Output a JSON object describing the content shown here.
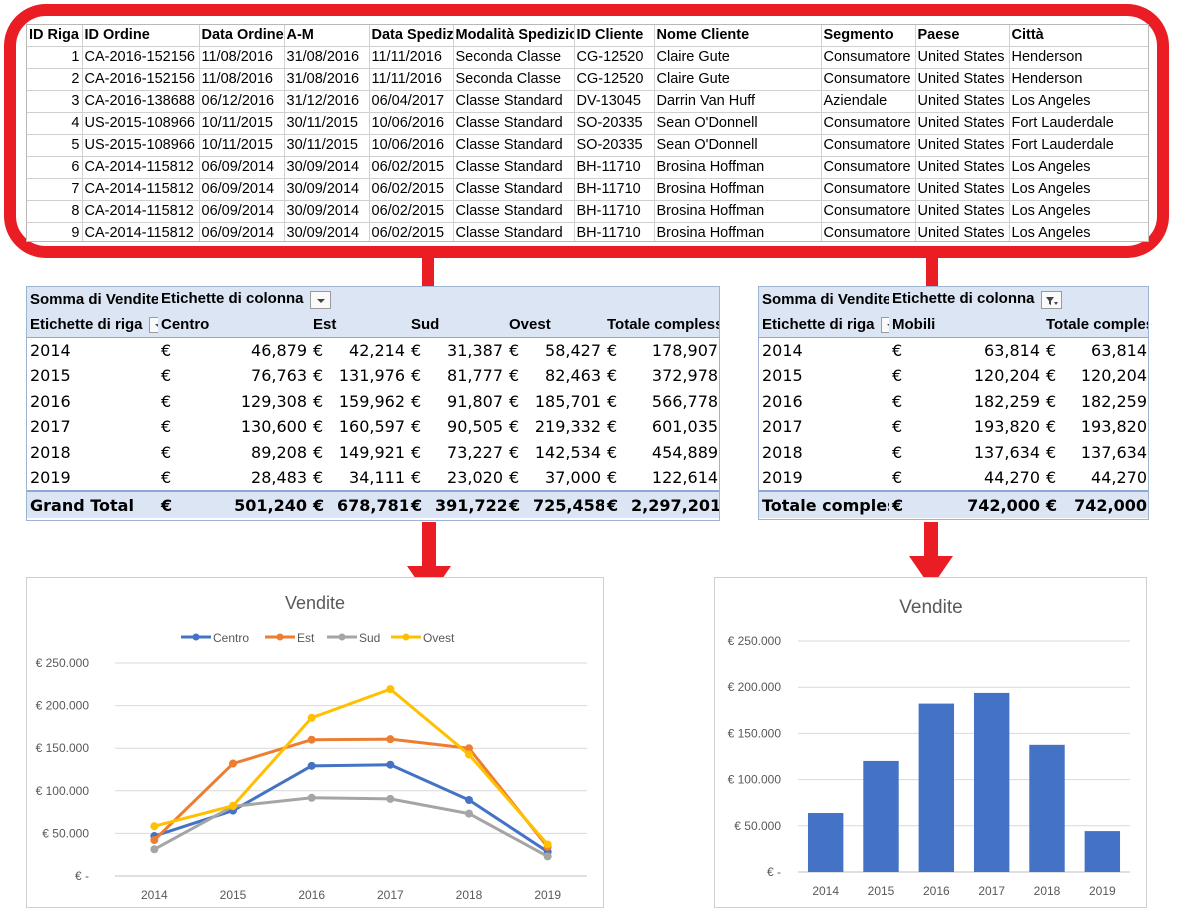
{
  "raw_table": {
    "columns": [
      "ID Riga",
      "ID Ordine",
      "Data Ordine",
      "A-M",
      "Data Spedizione",
      "Modalità Spedizione",
      "ID Cliente",
      "Nome Cliente",
      "Segmento",
      "Paese",
      "Città"
    ],
    "rows": [
      [
        "1",
        "CA-2016-152156",
        "11/08/2016",
        "31/08/2016",
        "11/11/2016",
        "Seconda Classe",
        "CG-12520",
        "Claire Gute",
        "Consumatore",
        "United States",
        "Henderson"
      ],
      [
        "2",
        "CA-2016-152156",
        "11/08/2016",
        "31/08/2016",
        "11/11/2016",
        "Seconda Classe",
        "CG-12520",
        "Claire Gute",
        "Consumatore",
        "United States",
        "Henderson"
      ],
      [
        "3",
        "CA-2016-138688",
        "06/12/2016",
        "31/12/2016",
        "06/04/2017",
        "Classe Standard",
        "DV-13045",
        "Darrin Van Huff",
        "Aziendale",
        "United States",
        "Los Angeles"
      ],
      [
        "4",
        "US-2015-108966",
        "10/11/2015",
        "30/11/2015",
        "10/06/2016",
        "Classe Standard",
        "SO-20335",
        "Sean O'Donnell",
        "Consumatore",
        "United States",
        "Fort Lauderdale"
      ],
      [
        "5",
        "US-2015-108966",
        "10/11/2015",
        "30/11/2015",
        "10/06/2016",
        "Classe Standard",
        "SO-20335",
        "Sean O'Donnell",
        "Consumatore",
        "United States",
        "Fort Lauderdale"
      ],
      [
        "6",
        "CA-2014-115812",
        "06/09/2014",
        "30/09/2014",
        "06/02/2015",
        "Classe Standard",
        "BH-11710",
        "Brosina Hoffman",
        "Consumatore",
        "United States",
        "Los Angeles"
      ],
      [
        "7",
        "CA-2014-115812",
        "06/09/2014",
        "30/09/2014",
        "06/02/2015",
        "Classe Standard",
        "BH-11710",
        "Brosina Hoffman",
        "Consumatore",
        "United States",
        "Los Angeles"
      ],
      [
        "8",
        "CA-2014-115812",
        "06/09/2014",
        "30/09/2014",
        "06/02/2015",
        "Classe Standard",
        "BH-11710",
        "Brosina Hoffman",
        "Consumatore",
        "United States",
        "Los Angeles"
      ],
      [
        "9",
        "CA-2014-115812",
        "06/09/2014",
        "30/09/2014",
        "06/02/2015",
        "Classe Standard",
        "BH-11710",
        "Brosina Hoffman",
        "Consumatore",
        "United States",
        "Los Angeles"
      ]
    ]
  },
  "pivot_region": {
    "values_label": "Somma di Vendite",
    "col_labels_label": "Etichette di colonna",
    "row_labels_label": "Etichette di riga",
    "columns": [
      "Centro",
      "Est",
      "Sud",
      "Ovest",
      "Totale complessivo"
    ],
    "currency": "€",
    "rows": [
      {
        "label": "2014",
        "values": [
          "46,879",
          "42,214",
          "31,387",
          "58,427",
          "178,907"
        ]
      },
      {
        "label": "2015",
        "values": [
          "76,763",
          "131,976",
          "81,777",
          "82,463",
          "372,978"
        ]
      },
      {
        "label": "2016",
        "values": [
          "129,308",
          "159,962",
          "91,807",
          "185,701",
          "566,778"
        ]
      },
      {
        "label": "2017",
        "values": [
          "130,600",
          "160,597",
          "90,505",
          "219,332",
          "601,035"
        ]
      },
      {
        "label": "2018",
        "values": [
          "89,208",
          "149,921",
          "73,227",
          "142,534",
          "454,889"
        ]
      },
      {
        "label": "2019",
        "values": [
          "28,483",
          "34,111",
          "23,020",
          "37,000",
          "122,614"
        ]
      }
    ],
    "total": {
      "label": "Grand Total",
      "values": [
        "501,240",
        "678,781",
        "391,722",
        "725,458",
        "2,297,201"
      ]
    }
  },
  "pivot_category": {
    "values_label": "Somma di Vendite",
    "col_labels_label": "Etichette di colonna",
    "row_labels_label": "Etichette di riga",
    "columns": [
      "Mobili",
      "Totale complessivo"
    ],
    "currency": "€",
    "rows": [
      {
        "label": "2014",
        "values": [
          "63,814",
          "63,814"
        ]
      },
      {
        "label": "2015",
        "values": [
          "120,204",
          "120,204"
        ]
      },
      {
        "label": "2016",
        "values": [
          "182,259",
          "182,259"
        ]
      },
      {
        "label": "2017",
        "values": [
          "193,820",
          "193,820"
        ]
      },
      {
        "label": "2018",
        "values": [
          "137,634",
          "137,634"
        ]
      },
      {
        "label": "2019",
        "values": [
          "44,270",
          "44,270"
        ]
      }
    ],
    "total": {
      "label": "Totale complessivo",
      "values": [
        "742,000",
        "742,000"
      ]
    }
  },
  "colors": {
    "frame_red": "#ea1c24",
    "pivot_header_bg": "#dce5f4",
    "centro": "#4472c4",
    "est": "#ed7d31",
    "sud": "#a5a5a5",
    "ovest": "#ffc000",
    "bar": "#4472c4"
  },
  "chart_data": [
    {
      "type": "line",
      "title": "Vendite",
      "categories": [
        "2014",
        "2015",
        "2016",
        "2017",
        "2018",
        "2019"
      ],
      "series": [
        {
          "name": "Centro",
          "color": "#4472c4",
          "values": [
            46879,
            76763,
            129308,
            130600,
            89208,
            28483
          ]
        },
        {
          "name": "Est",
          "color": "#ed7d31",
          "values": [
            42214,
            131976,
            159962,
            160597,
            149921,
            34111
          ]
        },
        {
          "name": "Sud",
          "color": "#a5a5a5",
          "values": [
            31387,
            81777,
            91807,
            90505,
            73227,
            23020
          ]
        },
        {
          "name": "Ovest",
          "color": "#ffc000",
          "values": [
            58427,
            82463,
            185701,
            219332,
            142534,
            37000
          ]
        }
      ],
      "ylim": [
        0,
        250000
      ],
      "y_ticks": [
        "€ -",
        "€ 50.000",
        "€ 100.000",
        "€ 150.000",
        "€ 200.000",
        "€ 250.000"
      ],
      "legend": "top",
      "grid": true
    },
    {
      "type": "bar",
      "title": "Vendite",
      "categories": [
        "2014",
        "2015",
        "2016",
        "2017",
        "2018",
        "2019"
      ],
      "values": [
        63814,
        120204,
        182259,
        193820,
        137634,
        44270
      ],
      "color": "#4472c4",
      "ylim": [
        0,
        250000
      ],
      "y_ticks": [
        "€ -",
        "€ 50.000",
        "€ 100.000",
        "€ 150.000",
        "€ 200.000",
        "€ 250.000"
      ],
      "grid": true
    }
  ]
}
